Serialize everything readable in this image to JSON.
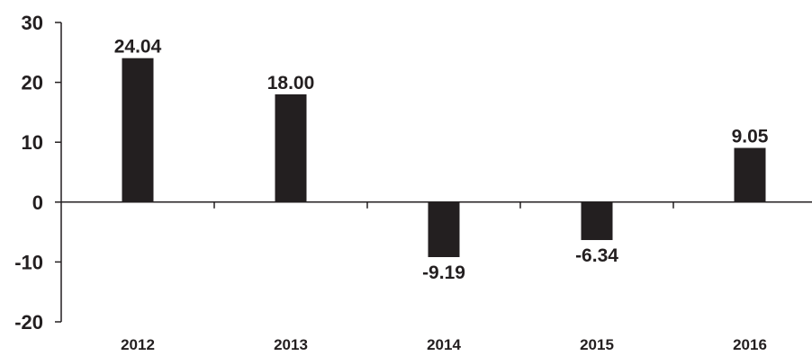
{
  "chart_data": {
    "type": "bar",
    "title": "",
    "xlabel": "",
    "ylabel": "",
    "categories": [
      "2012",
      "2013",
      "2014",
      "2015",
      "2016"
    ],
    "values": [
      24.04,
      18.0,
      -9.19,
      -6.34,
      9.05
    ],
    "data_labels": [
      "24.04",
      "18.00",
      "-9.19",
      "-6.34",
      "9.05"
    ],
    "ylim": [
      -20,
      30
    ],
    "yticks": [
      30,
      20,
      10,
      0,
      -10,
      -20
    ],
    "ytick_labels": [
      "30",
      "20",
      "10",
      "0",
      "-10",
      "-20"
    ],
    "grid": false,
    "legend": "none",
    "bar_color": "#231f20",
    "axis_color": "#231f20"
  }
}
